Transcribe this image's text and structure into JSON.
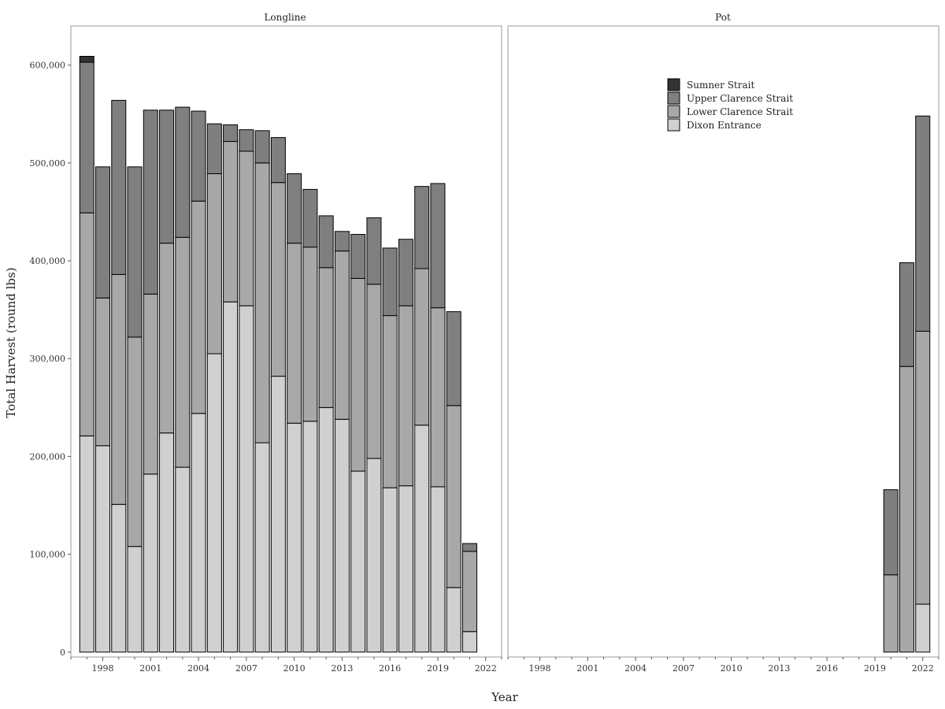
{
  "chart_data": {
    "type": "bar",
    "stacked": true,
    "xlabel": "Year",
    "ylabel": "Total Harvest (round lbs)",
    "ylim": [
      -5000,
      640000
    ],
    "y_ticks": [
      0,
      100000,
      200000,
      300000,
      400000,
      500000,
      600000
    ],
    "y_tick_labels": [
      "0",
      "100,000",
      "200,000",
      "300,000",
      "400,000",
      "500,000",
      "600,000"
    ],
    "x_range": [
      1996,
      2023
    ],
    "x_ticks": [
      1998,
      2001,
      2004,
      2007,
      2010,
      2013,
      2016,
      2019,
      2022
    ],
    "x_tick_labels": [
      "1998",
      "2001",
      "2004",
      "2007",
      "2010",
      "2013",
      "2016",
      "2019",
      "2022"
    ],
    "grid": false,
    "legend": {
      "placement": "top-left of right panel",
      "entries": [
        "Sumner Strait",
        "Upper Clarence Strait",
        "Lower Clarence Strait",
        "Dixon Entrance"
      ]
    },
    "series_colors": {
      "Sumner Strait": "#333333",
      "Upper Clarence Strait": "#7f7f7f",
      "Lower Clarence Strait": "#a8a8a8",
      "Dixon Entrance": "#d0d0d0"
    },
    "stack_order": [
      "Dixon Entrance",
      "Lower Clarence Strait",
      "Upper Clarence Strait",
      "Sumner Strait"
    ],
    "panels": [
      {
        "title": "Longline",
        "x": [
          1997,
          1998,
          1999,
          2000,
          2001,
          2002,
          2003,
          2004,
          2005,
          2006,
          2007,
          2008,
          2009,
          2010,
          2011,
          2012,
          2013,
          2014,
          2015,
          2016,
          2017,
          2018,
          2019,
          2020,
          2021
        ],
        "series": [
          {
            "name": "Dixon Entrance",
            "values": [
              221000,
              211000,
              151000,
              108000,
              182000,
              224000,
              189000,
              244000,
              305000,
              358000,
              354000,
              214000,
              282000,
              234000,
              236000,
              250000,
              238000,
              185000,
              198000,
              168000,
              170000,
              232000,
              169000,
              66000,
              21000
            ]
          },
          {
            "name": "Lower Clarence Strait",
            "values": [
              228000,
              151000,
              235000,
              214000,
              184000,
              194000,
              235000,
              217000,
              184000,
              164000,
              158000,
              286000,
              198000,
              184000,
              178000,
              143000,
              172000,
              197000,
              178000,
              176000,
              184000,
              160000,
              183000,
              186000,
              82000
            ]
          },
          {
            "name": "Upper Clarence Strait",
            "values": [
              154000,
              134000,
              178000,
              174000,
              188000,
              136000,
              133000,
              92000,
              51000,
              17000,
              22000,
              33000,
              46000,
              71000,
              59000,
              53000,
              20000,
              45000,
              68000,
              69000,
              68000,
              84000,
              127000,
              96000,
              8000
            ]
          },
          {
            "name": "Sumner Strait",
            "values": [
              6000,
              0,
              0,
              0,
              0,
              0,
              0,
              0,
              0,
              0,
              0,
              0,
              0,
              0,
              0,
              0,
              0,
              0,
              0,
              0,
              0,
              0,
              0,
              0,
              0
            ]
          }
        ]
      },
      {
        "title": "Pot",
        "x": [
          2020,
          2021,
          2022
        ],
        "series": [
          {
            "name": "Dixon Entrance",
            "values": [
              0,
              0,
              49000
            ]
          },
          {
            "name": "Lower Clarence Strait",
            "values": [
              79000,
              292000,
              279000
            ]
          },
          {
            "name": "Upper Clarence Strait",
            "values": [
              87000,
              106000,
              220000
            ]
          },
          {
            "name": "Sumner Strait",
            "values": [
              0,
              0,
              0
            ]
          }
        ]
      }
    ]
  }
}
